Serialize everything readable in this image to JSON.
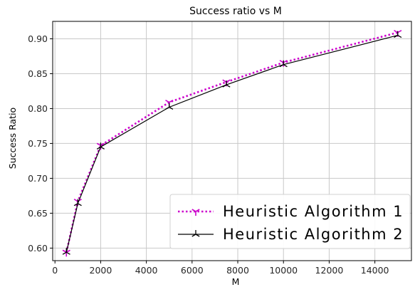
{
  "colors": {
    "series1": "#cc00cc",
    "series2": "#000000",
    "grid": "#c8c8c8",
    "frame": "#000000",
    "legend_border": "#d0d0d0"
  },
  "chart_data": {
    "type": "line",
    "title": "Success ratio vs M",
    "xlabel": "M",
    "ylabel": "Success Ratio",
    "xlim": [
      -100,
      15600
    ],
    "ylim": [
      0.582,
      0.925
    ],
    "xticks": [
      0,
      2000,
      4000,
      6000,
      8000,
      10000,
      12000,
      14000
    ],
    "yticks": [
      0.6,
      0.65,
      0.7,
      0.75,
      0.8,
      0.85,
      0.9
    ],
    "grid": true,
    "legend_position": "bottom-right",
    "x": [
      500,
      1000,
      2000,
      5000,
      7500,
      10000,
      15000
    ],
    "series": [
      {
        "name": "Heuristic Algorithm 1",
        "values": [
          0.594,
          0.667,
          0.747,
          0.809,
          0.838,
          0.866,
          0.909
        ],
        "line_style": "dotted",
        "marker": "tri_down",
        "color": "#cc00cc"
      },
      {
        "name": "Heuristic Algorithm 2",
        "values": [
          0.594,
          0.664,
          0.745,
          0.802,
          0.834,
          0.863,
          0.905
        ],
        "line_style": "solid",
        "marker": "tri_star",
        "color": "#000000"
      }
    ]
  }
}
